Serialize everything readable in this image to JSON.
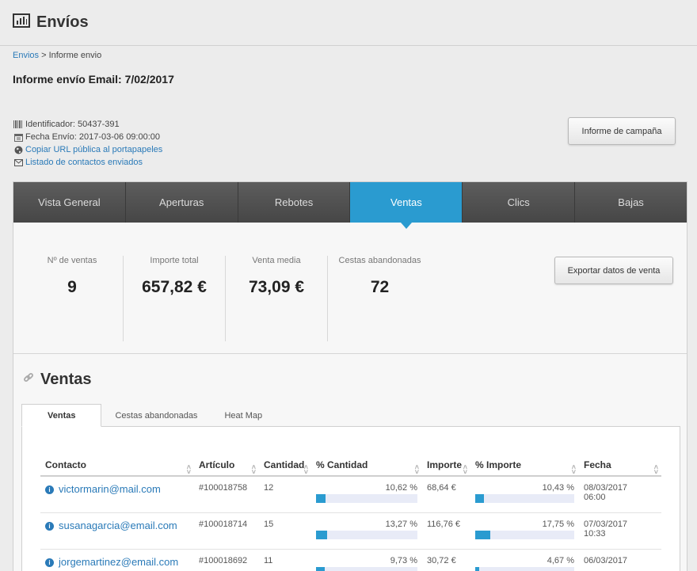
{
  "header": {
    "title": "Envíos"
  },
  "breadcrumb": {
    "link": "Envios",
    "separator": " > ",
    "current": "Informe envio"
  },
  "page_title": "Informe envío Email: 7/02/2017",
  "meta": {
    "identifier": "Identificador: 50437-391",
    "date": "Fecha Envío: 2017-03-06 09:00:00",
    "copy_url": "Copiar URL pública al portapapeles",
    "contacts_list": "Listado de contactos enviados"
  },
  "campaign_button": "Informe de campaña",
  "tabs": [
    "Vista General",
    "Aperturas",
    "Rebotes",
    "Ventas",
    "Clics",
    "Bajas"
  ],
  "active_tab": 3,
  "stats": [
    {
      "label": "Nº de ventas",
      "value": "9"
    },
    {
      "label": "Importe total",
      "value": "657,82 €"
    },
    {
      "label": "Venta media",
      "value": "73,09 €"
    },
    {
      "label": "Cestas abandonadas",
      "value": "72"
    }
  ],
  "export_button": "Exportar datos de venta",
  "section_title": "Ventas",
  "subtabs": [
    "Ventas",
    "Cestas abandonadas",
    "Heat Map"
  ],
  "table": {
    "headers": [
      "Contacto",
      "Artículo",
      "Cantidad",
      "% Cantidad",
      "Importe",
      "% Importe",
      "Fecha"
    ],
    "rows": [
      {
        "contact": "victormarin@mail.com",
        "article": "#100018758",
        "qty": "12",
        "pct_qty": "10,62 %",
        "pct_qty_value": 10.62,
        "amount": "68,64 €",
        "pct_amount": "10,43 %",
        "pct_amount_value": 10.43,
        "date": "08/03/2017",
        "time": "06:00"
      },
      {
        "contact": "susanagarcia@email.com",
        "article": "#100018714",
        "qty": "15",
        "pct_qty": "13,27 %",
        "pct_qty_value": 13.27,
        "amount": "116,76 €",
        "pct_amount": "17,75 %",
        "pct_amount_value": 17.75,
        "date": "07/03/2017",
        "time": "10:33"
      },
      {
        "contact": "jorgemartinez@email.com",
        "article": "#100018692",
        "qty": "11",
        "pct_qty": "9,73 %",
        "pct_qty_value": 9.73,
        "amount": "30,72 €",
        "pct_amount": "4,67 %",
        "pct_amount_value": 4.67,
        "date": "06/03/2017",
        "time": ""
      }
    ]
  },
  "colors": {
    "accent": "#2a9bd0",
    "link": "#2a7ab8",
    "tabbar": "#4e4e4e"
  }
}
